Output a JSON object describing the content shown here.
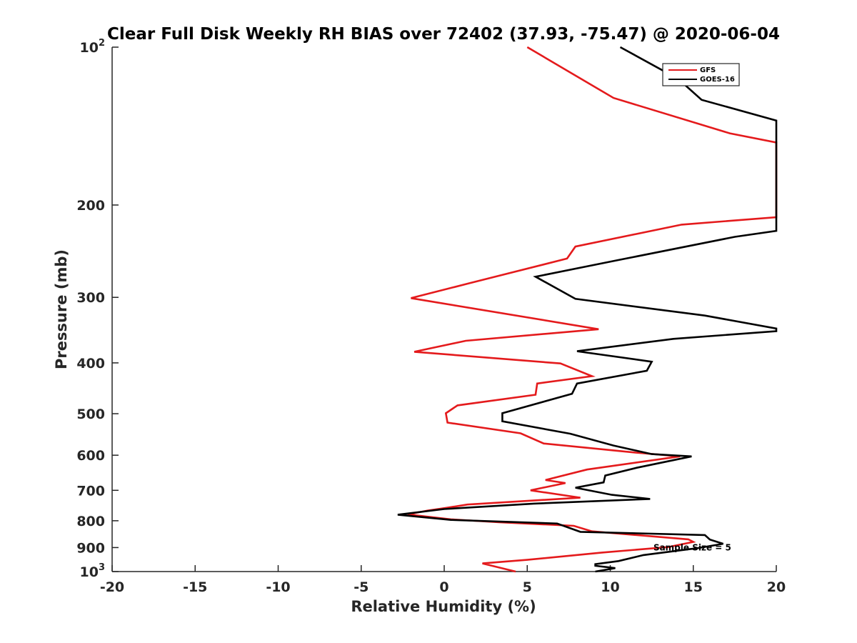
{
  "chart_data": {
    "type": "line",
    "title": "Clear Full Disk Weekly RH BIAS over 72402 (37.93, -75.47) @ 2020-06-04",
    "xlabel": "Relative Humidity (%)",
    "ylabel": "Pressure (mb)",
    "xlim": [
      -20,
      20
    ],
    "ylim": [
      100,
      1000
    ],
    "y_scale": "log",
    "y_reversed": true,
    "grid": false,
    "legend_position": "top-right",
    "x_ticks": [
      -20,
      -15,
      -10,
      -5,
      0,
      5,
      10,
      15,
      20
    ],
    "x_tick_labels": [
      "-20",
      "-15",
      "-10",
      "-5",
      "0",
      "5",
      "10",
      "15",
      "20"
    ],
    "y_ticks": [
      {
        "value": 100,
        "base": "10",
        "exp": "2"
      },
      {
        "value": 200,
        "base": "200",
        "exp": ""
      },
      {
        "value": 300,
        "base": "300",
        "exp": ""
      },
      {
        "value": 400,
        "base": "400",
        "exp": ""
      },
      {
        "value": 500,
        "base": "500",
        "exp": ""
      },
      {
        "value": 600,
        "base": "600",
        "exp": ""
      },
      {
        "value": 700,
        "base": "700",
        "exp": ""
      },
      {
        "value": 800,
        "base": "800",
        "exp": ""
      },
      {
        "value": 900,
        "base": "900",
        "exp": ""
      },
      {
        "value": 1000,
        "base": "10",
        "exp": "3"
      }
    ],
    "series": [
      {
        "name": "GFS",
        "color": "#e41a1c",
        "points": [
          [
            5.0,
            100
          ],
          [
            10.2,
            125
          ],
          [
            17.2,
            146
          ],
          [
            20.0,
            152
          ],
          [
            20.0,
            211
          ],
          [
            14.3,
            218
          ],
          [
            7.9,
            240
          ],
          [
            7.4,
            253
          ],
          [
            1.5,
            282
          ],
          [
            -2.0,
            301
          ],
          [
            9.3,
            345
          ],
          [
            1.3,
            363
          ],
          [
            -1.8,
            381
          ],
          [
            7.0,
            401
          ],
          [
            8.9,
            424
          ],
          [
            5.6,
            438
          ],
          [
            5.5,
            460
          ],
          [
            0.8,
            482
          ],
          [
            0.1,
            499
          ],
          [
            0.2,
            520
          ],
          [
            4.6,
            545
          ],
          [
            6.0,
            570
          ],
          [
            11.5,
            593
          ],
          [
            14.2,
            603
          ],
          [
            8.6,
            639
          ],
          [
            6.1,
            669
          ],
          [
            7.3,
            678
          ],
          [
            5.2,
            700
          ],
          [
            8.2,
            723
          ],
          [
            1.4,
            745
          ],
          [
            0.0,
            757
          ],
          [
            -1.0,
            765
          ],
          [
            -2.2,
            778
          ],
          [
            0.4,
            795
          ],
          [
            3.3,
            805
          ],
          [
            7.8,
            818
          ],
          [
            8.9,
            838
          ],
          [
            14.7,
            868
          ],
          [
            15.0,
            878
          ],
          [
            13.5,
            898
          ],
          [
            9.5,
            920
          ],
          [
            5.0,
            950
          ],
          [
            2.3,
            965
          ],
          [
            4.3,
            1000
          ]
        ]
      },
      {
        "name": "GOES-16",
        "color": "#000000",
        "points": [
          [
            10.6,
            100
          ],
          [
            14.1,
            115
          ],
          [
            15.5,
            126
          ],
          [
            20.0,
            138
          ],
          [
            20.0,
            224
          ],
          [
            17.5,
            230
          ],
          [
            10.4,
            255
          ],
          [
            5.5,
            274
          ],
          [
            7.9,
            302
          ],
          [
            15.7,
            325
          ],
          [
            20.0,
            344
          ],
          [
            20.0,
            348
          ],
          [
            13.8,
            360
          ],
          [
            8.0,
            380
          ],
          [
            12.5,
            398
          ],
          [
            12.2,
            414
          ],
          [
            8.0,
            438
          ],
          [
            7.7,
            458
          ],
          [
            3.5,
            499
          ],
          [
            3.5,
            517
          ],
          [
            7.6,
            546
          ],
          [
            10.2,
            575
          ],
          [
            12.5,
            597
          ],
          [
            14.9,
            603
          ],
          [
            11.6,
            634
          ],
          [
            9.7,
            656
          ],
          [
            9.6,
            676
          ],
          [
            7.9,
            692
          ],
          [
            10.1,
            714
          ],
          [
            12.4,
            727
          ],
          [
            5.4,
            742
          ],
          [
            0.0,
            760
          ],
          [
            -2.8,
            779
          ],
          [
            0.4,
            797
          ],
          [
            6.8,
            810
          ],
          [
            8.2,
            840
          ],
          [
            15.7,
            852
          ],
          [
            16.0,
            869
          ],
          [
            16.8,
            885
          ],
          [
            15.3,
            902
          ],
          [
            12.0,
            930
          ],
          [
            10.5,
            955
          ],
          [
            9.1,
            968
          ],
          [
            9.1,
            975
          ],
          [
            10.3,
            985
          ],
          [
            9.1,
            1000
          ]
        ]
      }
    ],
    "annotations": [
      {
        "text": "Sample Size = 5",
        "x": 12.6,
        "y": 900
      }
    ]
  }
}
